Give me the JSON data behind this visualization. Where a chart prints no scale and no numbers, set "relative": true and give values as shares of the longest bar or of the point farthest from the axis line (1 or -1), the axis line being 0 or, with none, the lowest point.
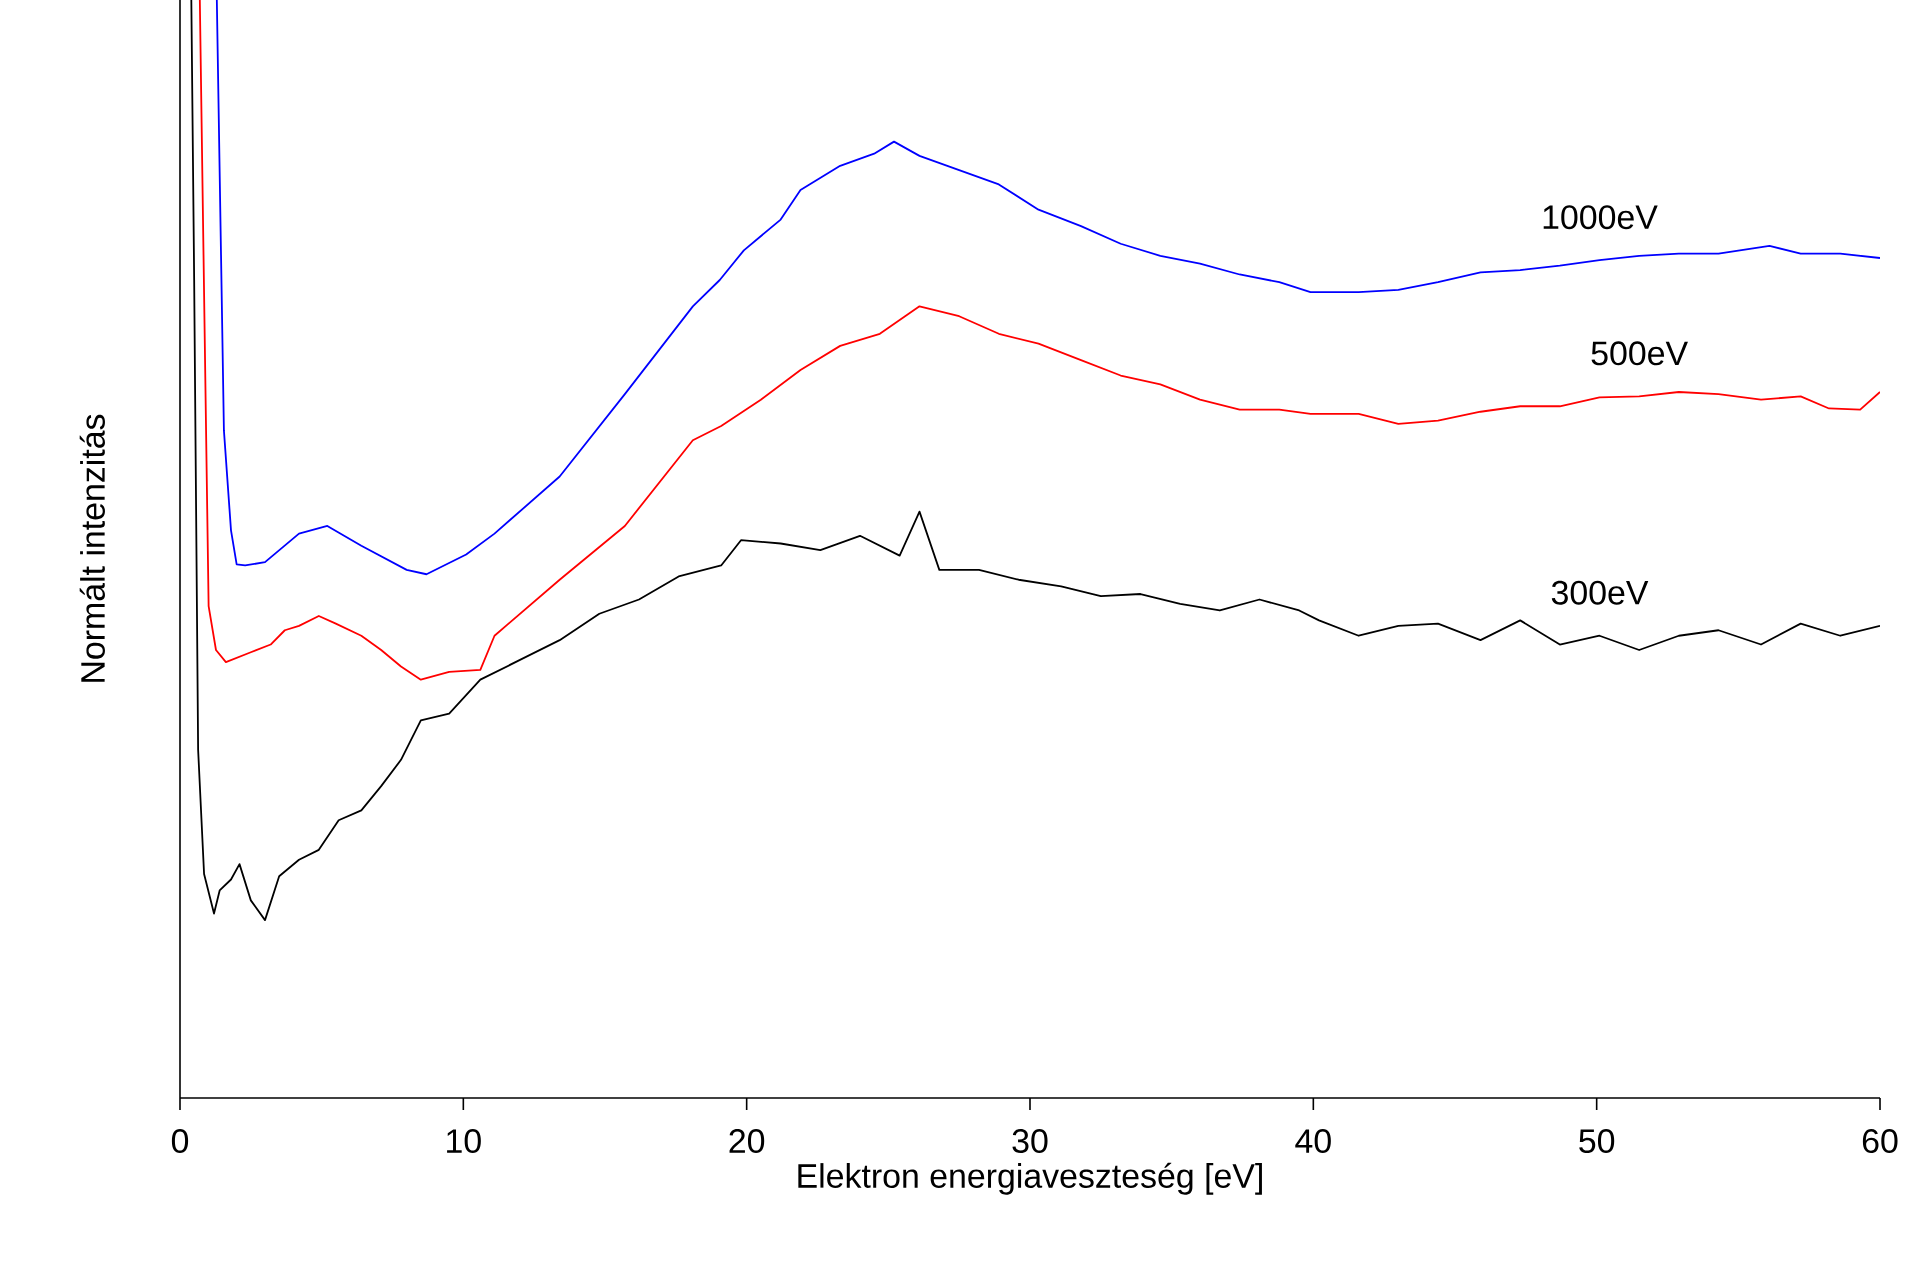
{
  "chart_data": {
    "type": "line",
    "relative": true,
    "xlabel": "Elektron energiaveszteség [eV]",
    "ylabel": "Normált intenzitás",
    "xlim": [
      0,
      60
    ],
    "xticks": [
      0,
      10,
      20,
      30,
      40,
      50,
      60
    ],
    "series": [
      {
        "name": "1000eV",
        "color": "#0000ff",
        "x": [
          1.3,
          1.55,
          1.8,
          2.0,
          2.3,
          3.0,
          4.2,
          5.2,
          6.4,
          8.0,
          8.7,
          10.1,
          11.1,
          13.4,
          15.7,
          18.1,
          19.05,
          19.9,
          21.2,
          21.9,
          23.3,
          24.5,
          25.2,
          26.1,
          27.5,
          28.9,
          30.3,
          31.8,
          33.2,
          34.6,
          36.0,
          37.4,
          38.8,
          39.9,
          41.6,
          43.0,
          44.4,
          45.9,
          47.3,
          48.7,
          50.1,
          51.5,
          52.9,
          54.3,
          56.1,
          57.2,
          58.6,
          60
        ],
        "values": [
          1.0,
          0.608,
          0.517,
          0.486,
          0.485,
          0.488,
          0.514,
          0.521,
          0.503,
          0.481,
          0.477,
          0.495,
          0.514,
          0.566,
          0.641,
          0.721,
          0.745,
          0.772,
          0.8,
          0.827,
          0.849,
          0.86,
          0.871,
          0.858,
          0.845,
          0.832,
          0.809,
          0.794,
          0.778,
          0.767,
          0.76,
          0.75,
          0.743,
          0.734,
          0.734,
          0.736,
          0.743,
          0.752,
          0.754,
          0.758,
          0.763,
          0.767,
          0.769,
          0.769,
          0.776,
          0.769,
          0.769,
          0.765
        ]
      },
      {
        "name": "500eV",
        "color": "#ff0000",
        "x": [
          0.7,
          1.01,
          1.27,
          1.62,
          2.5,
          3.2,
          3.7,
          4.2,
          4.9,
          5.5,
          6.4,
          7.1,
          7.8,
          8.5,
          9.5,
          10.6,
          11.1,
          13.4,
          15.7,
          18.1,
          19.1,
          20.5,
          21.9,
          23.3,
          24.7,
          26.1,
          27.5,
          28.9,
          30.3,
          31.8,
          33.2,
          34.6,
          36.0,
          37.4,
          38.8,
          39.9,
          41.6,
          43.0,
          44.4,
          45.9,
          47.3,
          48.7,
          50.1,
          51.5,
          52.9,
          54.3,
          55.8,
          57.2,
          58.2,
          59.3,
          60
        ],
        "values": [
          1.0,
          0.448,
          0.408,
          0.397,
          0.406,
          0.413,
          0.426,
          0.43,
          0.439,
          0.432,
          0.421,
          0.408,
          0.393,
          0.381,
          0.388,
          0.39,
          0.421,
          0.472,
          0.521,
          0.599,
          0.612,
          0.636,
          0.663,
          0.685,
          0.696,
          0.721,
          0.712,
          0.696,
          0.687,
          0.672,
          0.658,
          0.65,
          0.636,
          0.627,
          0.627,
          0.623,
          0.623,
          0.614,
          0.617,
          0.625,
          0.63,
          0.63,
          0.638,
          0.639,
          0.643,
          0.641,
          0.636,
          0.639,
          0.628,
          0.627,
          0.643
        ]
      },
      {
        "name": "300eV",
        "color": "#000000",
        "x": [
          0.4,
          0.5,
          0.64,
          0.85,
          1.2,
          1.4,
          1.8,
          2.1,
          2.5,
          3.0,
          3.5,
          4.2,
          4.9,
          5.6,
          6.4,
          7.1,
          7.8,
          8.5,
          9.5,
          10.6,
          12.0,
          13.4,
          14.8,
          16.2,
          17.6,
          19.1,
          19.8,
          21.2,
          22.6,
          24.0,
          25.4,
          26.1,
          26.8,
          28.2,
          29.6,
          31.1,
          32.5,
          33.9,
          35.3,
          36.7,
          38.1,
          39.5,
          40.2,
          41.6,
          43.0,
          44.4,
          45.9,
          47.3,
          48.7,
          50.1,
          51.5,
          52.9,
          54.3,
          55.8,
          57.2,
          58.6,
          60
        ],
        "values": [
          1.0,
          0.745,
          0.317,
          0.204,
          0.168,
          0.189,
          0.199,
          0.213,
          0.18,
          0.162,
          0.202,
          0.217,
          0.226,
          0.253,
          0.262,
          0.284,
          0.308,
          0.344,
          0.35,
          0.381,
          0.399,
          0.417,
          0.441,
          0.454,
          0.475,
          0.485,
          0.508,
          0.505,
          0.499,
          0.512,
          0.494,
          0.534,
          0.481,
          0.481,
          0.472,
          0.466,
          0.457,
          0.459,
          0.45,
          0.444,
          0.454,
          0.444,
          0.435,
          0.421,
          0.43,
          0.432,
          0.417,
          0.435,
          0.413,
          0.421,
          0.408,
          0.421,
          0.426,
          0.413,
          0.432,
          0.421,
          0.43
        ]
      }
    ]
  }
}
